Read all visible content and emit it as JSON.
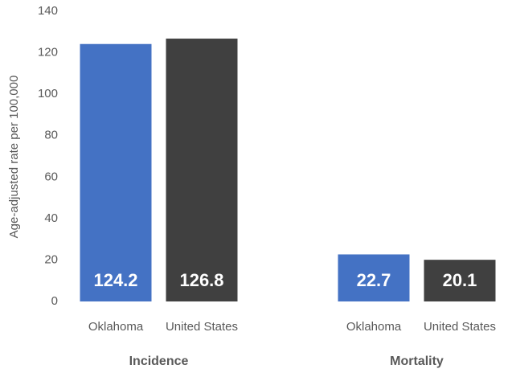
{
  "chart_data": {
    "type": "bar",
    "y_label": "Age-adjusted rate per 100,000",
    "categories": [
      "Incidence",
      "Mortality"
    ],
    "series": [
      {
        "name": "Oklahoma",
        "color": "#4472c4",
        "values": [
          124.2,
          22.7
        ]
      },
      {
        "name": "United States",
        "color": "#404040",
        "values": [
          126.8,
          20.1
        ]
      }
    ],
    "ylim": [
      0,
      140
    ],
    "yticks": [
      0,
      20,
      40,
      60,
      80,
      100,
      120,
      140
    ],
    "grid": false
  }
}
